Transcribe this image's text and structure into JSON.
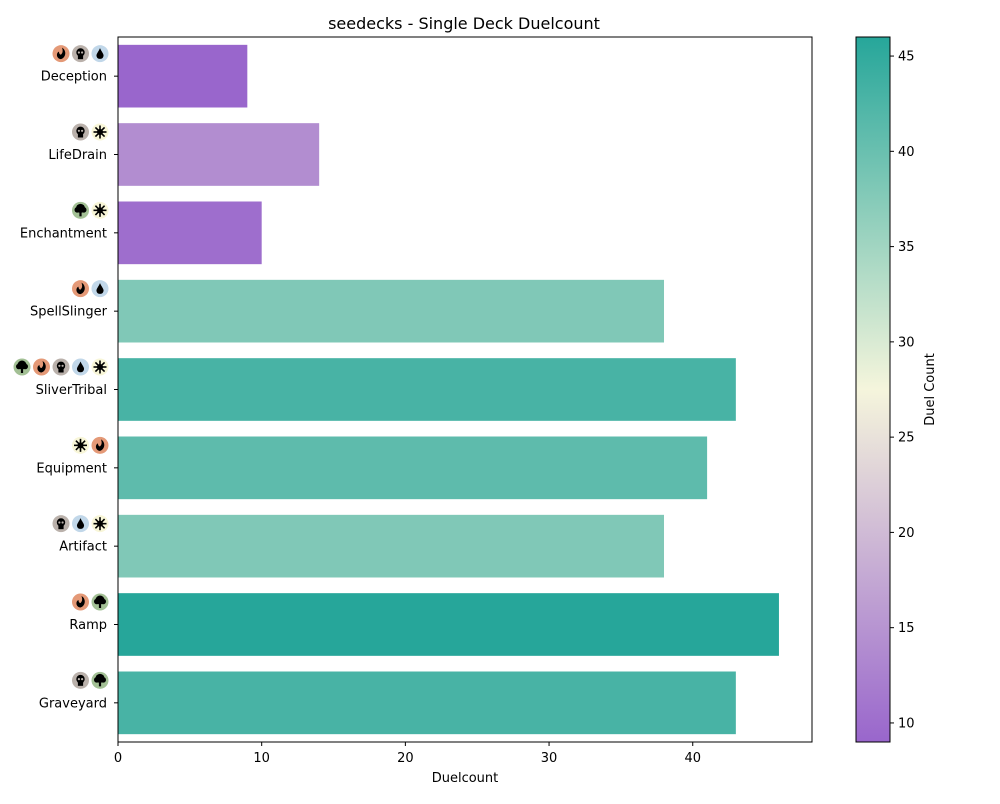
{
  "chart_data": {
    "type": "bar",
    "orientation": "horizontal",
    "title": "seedecks - Single Deck Duelcount",
    "xlabel": "Duelcount",
    "ylabel": "",
    "xlim": [
      0,
      48.3
    ],
    "xticks": [
      0,
      10,
      20,
      30,
      40
    ],
    "grid": false,
    "categories": [
      "Deception",
      "LifeDrain",
      "Enchantment",
      "SpellSlinger",
      "SliverTribal",
      "Equipment",
      "Artifact",
      "Ramp",
      "Graveyard"
    ],
    "values": [
      9,
      14,
      10,
      38,
      43,
      41,
      38,
      46,
      43
    ],
    "deck_colors": [
      [
        "red",
        "black",
        "blue"
      ],
      [
        "black",
        "white"
      ],
      [
        "green",
        "white"
      ],
      [
        "red",
        "blue"
      ],
      [
        "green",
        "red",
        "black",
        "blue",
        "white"
      ],
      [
        "white",
        "red"
      ],
      [
        "black",
        "blue",
        "white"
      ],
      [
        "red",
        "green"
      ],
      [
        "black",
        "green"
      ]
    ],
    "mana_symbols": {
      "white": {
        "icon": "sun-icon",
        "bg": "#f8f6d8"
      },
      "blue": {
        "icon": "water-drop-icon",
        "bg": "#c1d7e9"
      },
      "black": {
        "icon": "skull-icon",
        "bg": "#bab1ab"
      },
      "red": {
        "icon": "fire-icon",
        "bg": "#e49977"
      },
      "green": {
        "icon": "tree-icon",
        "bg": "#a3c095"
      }
    },
    "colorbar": {
      "label": "Duel Count",
      "range": [
        9,
        46
      ],
      "ticks": [
        10,
        15,
        20,
        25,
        30,
        35,
        40,
        45
      ],
      "colormap": [
        "#9966cc",
        "#f5f5dc",
        "#26a69a"
      ]
    }
  }
}
